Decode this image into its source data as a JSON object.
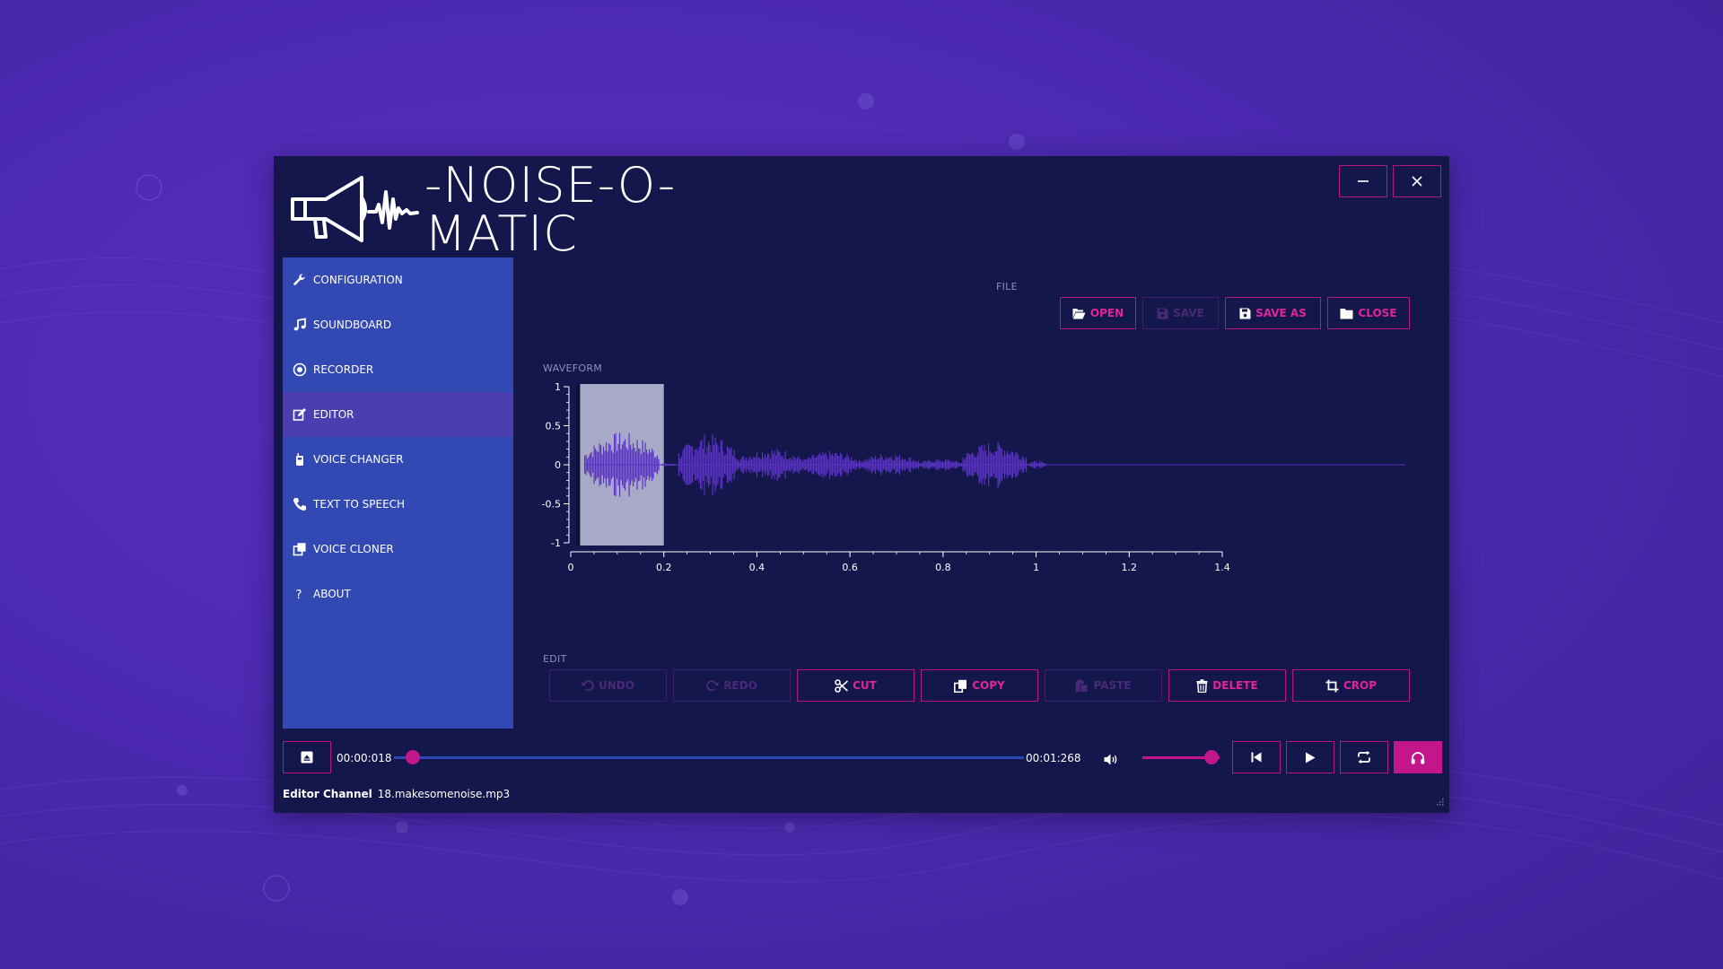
{
  "app": {
    "title": "-NOISE-O-MATIC",
    "accent_color": "#c2168a",
    "panel_color": "#3249b4"
  },
  "window_controls": {
    "minimize_icon": "minimize-icon",
    "close_icon": "close-icon"
  },
  "sidebar": {
    "items": [
      {
        "label": "CONFIGURATION",
        "icon": "wrench-icon"
      },
      {
        "label": "SOUNDBOARD",
        "icon": "music-note-icon"
      },
      {
        "label": "RECORDER",
        "icon": "record-icon"
      },
      {
        "label": "EDITOR",
        "icon": "edit-icon",
        "active": true
      },
      {
        "label": "VOICE CHANGER",
        "icon": "voice-changer-icon"
      },
      {
        "label": "TEXT TO SPEECH",
        "icon": "phone-icon"
      },
      {
        "label": "VOICE CLONER",
        "icon": "clone-icon"
      },
      {
        "label": "ABOUT",
        "icon": "question-icon"
      }
    ]
  },
  "file_section": {
    "label": "FILE",
    "buttons": [
      {
        "label": "OPEN",
        "enabled": true
      },
      {
        "label": "SAVE",
        "enabled": false
      },
      {
        "label": "SAVE AS",
        "enabled": true
      },
      {
        "label": "CLOSE",
        "enabled": true
      }
    ]
  },
  "waveform": {
    "label": "WAVEFORM",
    "y_ticks": [
      "1",
      "0.5",
      "0",
      "-0.5",
      "-1"
    ],
    "x_ticks": [
      "0",
      "0.2",
      "0.4",
      "0.6",
      "0.8",
      "1",
      "1.2",
      "1.4"
    ],
    "selection_range": [
      0.02,
      0.2
    ],
    "wave_color": "#5a32c4",
    "selection_color": "#a7a9c6"
  },
  "edit_section": {
    "label": "EDIT",
    "buttons": [
      {
        "label": "UNDO",
        "enabled": false
      },
      {
        "label": "REDO",
        "enabled": false
      },
      {
        "label": "CUT",
        "enabled": true
      },
      {
        "label": "COPY",
        "enabled": true
      },
      {
        "label": "PASTE",
        "enabled": false
      },
      {
        "label": "DELETE",
        "enabled": true
      },
      {
        "label": "CROP",
        "enabled": true
      }
    ]
  },
  "player": {
    "current_time": "00:00:018",
    "total_time": "00:01:268",
    "progress": 0.03,
    "volume": 0.9
  },
  "status": {
    "channel_label": "Editor Channel",
    "file_name": "18.makesomenoise.mp3"
  }
}
